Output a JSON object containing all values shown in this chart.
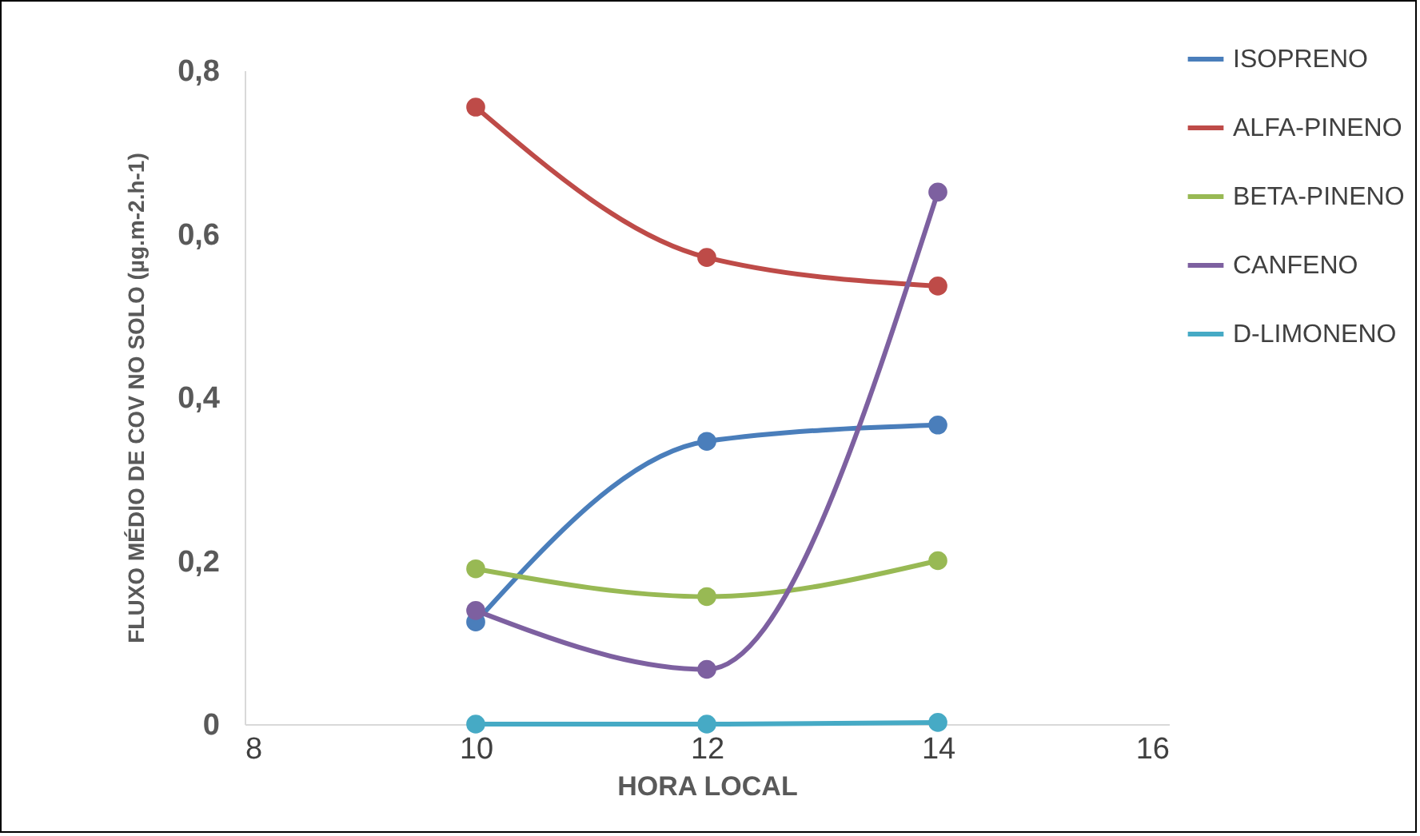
{
  "chart_data": {
    "type": "line",
    "xlabel": "HORA LOCAL",
    "ylabel": "FLUXO MÉDIO DE COV NO SOLO (µg.m-2.h-1)",
    "x": [
      10,
      12,
      14
    ],
    "xlim": [
      8,
      16
    ],
    "xticks": [
      8,
      10,
      12,
      14,
      16
    ],
    "ylim": [
      0,
      0.8
    ],
    "yticks": [
      {
        "value": 0,
        "label": "0"
      },
      {
        "value": 0.2,
        "label": "0,2"
      },
      {
        "value": 0.4,
        "label": "0,4"
      },
      {
        "value": 0.6,
        "label": "0,6"
      },
      {
        "value": 0.8,
        "label": "0,8"
      }
    ],
    "marker": "circle",
    "legend": "top right",
    "grid": false,
    "series": [
      {
        "name": "ISOPRENO",
        "color": "#4a7ebb",
        "values": [
          0.125,
          0.346,
          0.366
        ]
      },
      {
        "name": "ALFA-PINENO",
        "color": "#be4b48",
        "values": [
          0.755,
          0.571,
          0.536
        ]
      },
      {
        "name": "BETA-PINENO",
        "color": "#98b954",
        "values": [
          0.19,
          0.156,
          0.2
        ]
      },
      {
        "name": "CANFENO",
        "color": "#7d60a0",
        "values": [
          0.139,
          0.067,
          0.651
        ]
      },
      {
        "name": "D-LIMONENO",
        "color": "#46aac5",
        "values": [
          0,
          0,
          0.002
        ]
      }
    ]
  }
}
